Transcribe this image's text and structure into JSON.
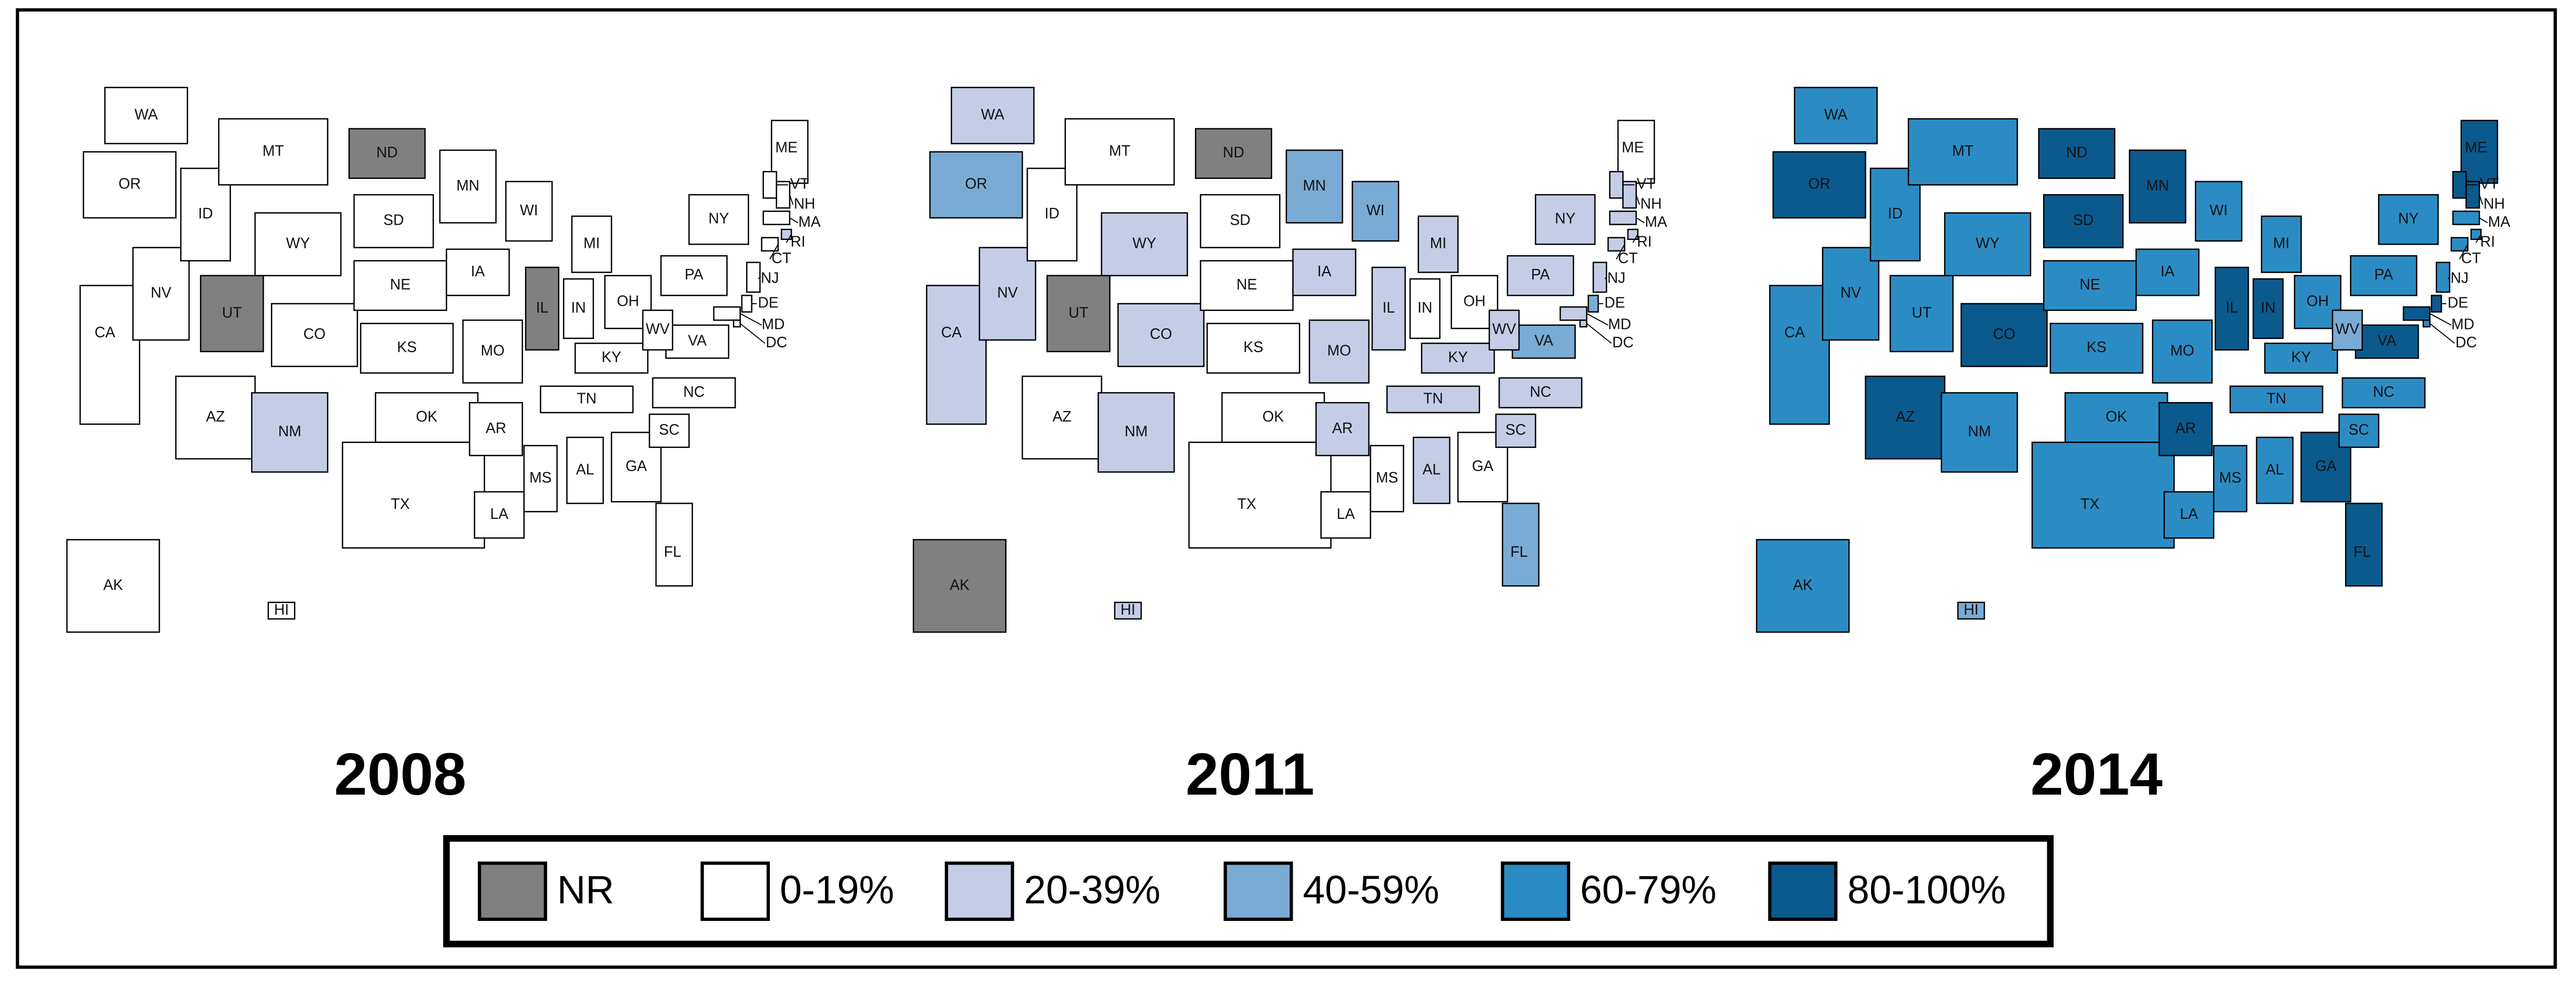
{
  "legend": [
    {
      "label": "NR",
      "color": "#808080"
    },
    {
      "label": "0-19%",
      "color": "#ffffff"
    },
    {
      "label": "20-39%",
      "color": "#c5cde6"
    },
    {
      "label": "40-59%",
      "color": "#7aabd4"
    },
    {
      "label": "60-79%",
      "color": "#2b8cc4"
    },
    {
      "label": "80-100%",
      "color": "#0a5a8e"
    }
  ],
  "maps": [
    {
      "year": "2008",
      "states": [
        {
          "label": "WA",
          "class": "0-19%"
        },
        {
          "label": "OR",
          "class": "0-19%"
        },
        {
          "label": "CA",
          "class": "0-19%"
        },
        {
          "label": "NV",
          "class": "0-19%"
        },
        {
          "label": "ID",
          "class": "0-19%"
        },
        {
          "label": "MT",
          "class": "0-19%"
        },
        {
          "label": "WY",
          "class": "0-19%"
        },
        {
          "label": "UT",
          "class": "NR"
        },
        {
          "label": "CO",
          "class": "0-19%"
        },
        {
          "label": "AZ",
          "class": "0-19%"
        },
        {
          "label": "NM",
          "class": "20-39%"
        },
        {
          "label": "ND",
          "class": "NR"
        },
        {
          "label": "SD",
          "class": "0-19%"
        },
        {
          "label": "NE",
          "class": "0-19%"
        },
        {
          "label": "KS",
          "class": "0-19%"
        },
        {
          "label": "OK",
          "class": "0-19%"
        },
        {
          "label": "TX",
          "class": "0-19%"
        },
        {
          "label": "MN",
          "class": "0-19%"
        },
        {
          "label": "IA",
          "class": "0-19%"
        },
        {
          "label": "MO",
          "class": "0-19%"
        },
        {
          "label": "AR",
          "class": "0-19%"
        },
        {
          "label": "LA",
          "class": "0-19%"
        },
        {
          "label": "WI",
          "class": "0-19%"
        },
        {
          "label": "IL",
          "class": "NR"
        },
        {
          "label": "MI",
          "class": "0-19%"
        },
        {
          "label": "IN",
          "class": "0-19%"
        },
        {
          "label": "OH",
          "class": "0-19%"
        },
        {
          "label": "KY",
          "class": "0-19%"
        },
        {
          "label": "TN",
          "class": "0-19%"
        },
        {
          "label": "MS",
          "class": "0-19%"
        },
        {
          "label": "AL",
          "class": "0-19%"
        },
        {
          "label": "GA",
          "class": "0-19%"
        },
        {
          "label": "FL",
          "class": "0-19%"
        },
        {
          "label": "SC",
          "class": "0-19%"
        },
        {
          "label": "NC",
          "class": "0-19%"
        },
        {
          "label": "VA",
          "class": "0-19%"
        },
        {
          "label": "WV",
          "class": "0-19%"
        },
        {
          "label": "PA",
          "class": "0-19%"
        },
        {
          "label": "NY",
          "class": "0-19%"
        },
        {
          "label": "ME",
          "class": "0-19%"
        },
        {
          "label": "VT",
          "class": "0-19%"
        },
        {
          "label": "NH",
          "class": "0-19%"
        },
        {
          "label": "MA",
          "class": "0-19%"
        },
        {
          "label": "RI",
          "class": "20-39%"
        },
        {
          "label": "CT",
          "class": "0-19%"
        },
        {
          "label": "NJ",
          "class": "0-19%"
        },
        {
          "label": "DE",
          "class": "0-19%"
        },
        {
          "label": "MD",
          "class": "0-19%"
        },
        {
          "label": "DC",
          "class": "0-19%"
        },
        {
          "label": "AK",
          "class": "0-19%"
        },
        {
          "label": "HI",
          "class": "0-19%"
        }
      ]
    },
    {
      "year": "2011",
      "states": [
        {
          "label": "WA",
          "class": "20-39%"
        },
        {
          "label": "OR",
          "class": "40-59%"
        },
        {
          "label": "CA",
          "class": "20-39%"
        },
        {
          "label": "NV",
          "class": "20-39%"
        },
        {
          "label": "ID",
          "class": "0-19%"
        },
        {
          "label": "MT",
          "class": "0-19%"
        },
        {
          "label": "WY",
          "class": "20-39%"
        },
        {
          "label": "UT",
          "class": "NR"
        },
        {
          "label": "CO",
          "class": "20-39%"
        },
        {
          "label": "AZ",
          "class": "0-19%"
        },
        {
          "label": "NM",
          "class": "20-39%"
        },
        {
          "label": "ND",
          "class": "NR"
        },
        {
          "label": "SD",
          "class": "0-19%"
        },
        {
          "label": "NE",
          "class": "0-19%"
        },
        {
          "label": "KS",
          "class": "0-19%"
        },
        {
          "label": "OK",
          "class": "0-19%"
        },
        {
          "label": "TX",
          "class": "0-19%"
        },
        {
          "label": "MN",
          "class": "40-59%"
        },
        {
          "label": "IA",
          "class": "20-39%"
        },
        {
          "label": "MO",
          "class": "20-39%"
        },
        {
          "label": "AR",
          "class": "20-39%"
        },
        {
          "label": "LA",
          "class": "0-19%"
        },
        {
          "label": "WI",
          "class": "40-59%"
        },
        {
          "label": "IL",
          "class": "20-39%"
        },
        {
          "label": "MI",
          "class": "20-39%"
        },
        {
          "label": "IN",
          "class": "0-19%"
        },
        {
          "label": "OH",
          "class": "0-19%"
        },
        {
          "label": "KY",
          "class": "20-39%"
        },
        {
          "label": "TN",
          "class": "20-39%"
        },
        {
          "label": "MS",
          "class": "0-19%"
        },
        {
          "label": "AL",
          "class": "20-39%"
        },
        {
          "label": "GA",
          "class": "0-19%"
        },
        {
          "label": "FL",
          "class": "40-59%"
        },
        {
          "label": "SC",
          "class": "20-39%"
        },
        {
          "label": "NC",
          "class": "20-39%"
        },
        {
          "label": "VA",
          "class": "40-59%"
        },
        {
          "label": "WV",
          "class": "20-39%"
        },
        {
          "label": "PA",
          "class": "20-39%"
        },
        {
          "label": "NY",
          "class": "20-39%"
        },
        {
          "label": "ME",
          "class": "0-19%"
        },
        {
          "label": "VT",
          "class": "20-39%"
        },
        {
          "label": "NH",
          "class": "20-39%"
        },
        {
          "label": "MA",
          "class": "20-39%"
        },
        {
          "label": "RI",
          "class": "20-39%"
        },
        {
          "label": "CT",
          "class": "20-39%"
        },
        {
          "label": "NJ",
          "class": "20-39%"
        },
        {
          "label": "DE",
          "class": "40-59%"
        },
        {
          "label": "MD",
          "class": "20-39%"
        },
        {
          "label": "DC",
          "class": "20-39%"
        },
        {
          "label": "AK",
          "class": "NR"
        },
        {
          "label": "HI",
          "class": "20-39%"
        }
      ]
    },
    {
      "year": "2014",
      "states": [
        {
          "label": "WA",
          "class": "60-79%"
        },
        {
          "label": "OR",
          "class": "80-100%"
        },
        {
          "label": "CA",
          "class": "60-79%"
        },
        {
          "label": "NV",
          "class": "60-79%"
        },
        {
          "label": "ID",
          "class": "60-79%"
        },
        {
          "label": "MT",
          "class": "60-79%"
        },
        {
          "label": "WY",
          "class": "60-79%"
        },
        {
          "label": "UT",
          "class": "60-79%"
        },
        {
          "label": "CO",
          "class": "80-100%"
        },
        {
          "label": "AZ",
          "class": "80-100%"
        },
        {
          "label": "NM",
          "class": "60-79%"
        },
        {
          "label": "ND",
          "class": "80-100%"
        },
        {
          "label": "SD",
          "class": "80-100%"
        },
        {
          "label": "NE",
          "class": "60-79%"
        },
        {
          "label": "KS",
          "class": "60-79%"
        },
        {
          "label": "OK",
          "class": "60-79%"
        },
        {
          "label": "TX",
          "class": "60-79%"
        },
        {
          "label": "MN",
          "class": "80-100%"
        },
        {
          "label": "IA",
          "class": "60-79%"
        },
        {
          "label": "MO",
          "class": "60-79%"
        },
        {
          "label": "AR",
          "class": "80-100%"
        },
        {
          "label": "LA",
          "class": "60-79%"
        },
        {
          "label": "WI",
          "class": "60-79%"
        },
        {
          "label": "IL",
          "class": "80-100%"
        },
        {
          "label": "MI",
          "class": "60-79%"
        },
        {
          "label": "IN",
          "class": "80-100%"
        },
        {
          "label": "OH",
          "class": "60-79%"
        },
        {
          "label": "KY",
          "class": "60-79%"
        },
        {
          "label": "TN",
          "class": "60-79%"
        },
        {
          "label": "MS",
          "class": "60-79%"
        },
        {
          "label": "AL",
          "class": "60-79%"
        },
        {
          "label": "GA",
          "class": "80-100%"
        },
        {
          "label": "FL",
          "class": "80-100%"
        },
        {
          "label": "SC",
          "class": "60-79%"
        },
        {
          "label": "NC",
          "class": "60-79%"
        },
        {
          "label": "VA",
          "class": "80-100%"
        },
        {
          "label": "WV",
          "class": "40-59%"
        },
        {
          "label": "PA",
          "class": "60-79%"
        },
        {
          "label": "NY",
          "class": "60-79%"
        },
        {
          "label": "ME",
          "class": "80-100%"
        },
        {
          "label": "VT",
          "class": "80-100%"
        },
        {
          "label": "NH",
          "class": "80-100%"
        },
        {
          "label": "MA",
          "class": "60-79%"
        },
        {
          "label": "RI",
          "class": "60-79%"
        },
        {
          "label": "CT",
          "class": "60-79%"
        },
        {
          "label": "NJ",
          "class": "60-79%"
        },
        {
          "label": "DE",
          "class": "80-100%"
        },
        {
          "label": "MD",
          "class": "80-100%"
        },
        {
          "label": "DC",
          "class": "60-79%"
        },
        {
          "label": "AK",
          "class": "60-79%"
        },
        {
          "label": "HI",
          "class": "40-59%"
        }
      ]
    }
  ]
}
